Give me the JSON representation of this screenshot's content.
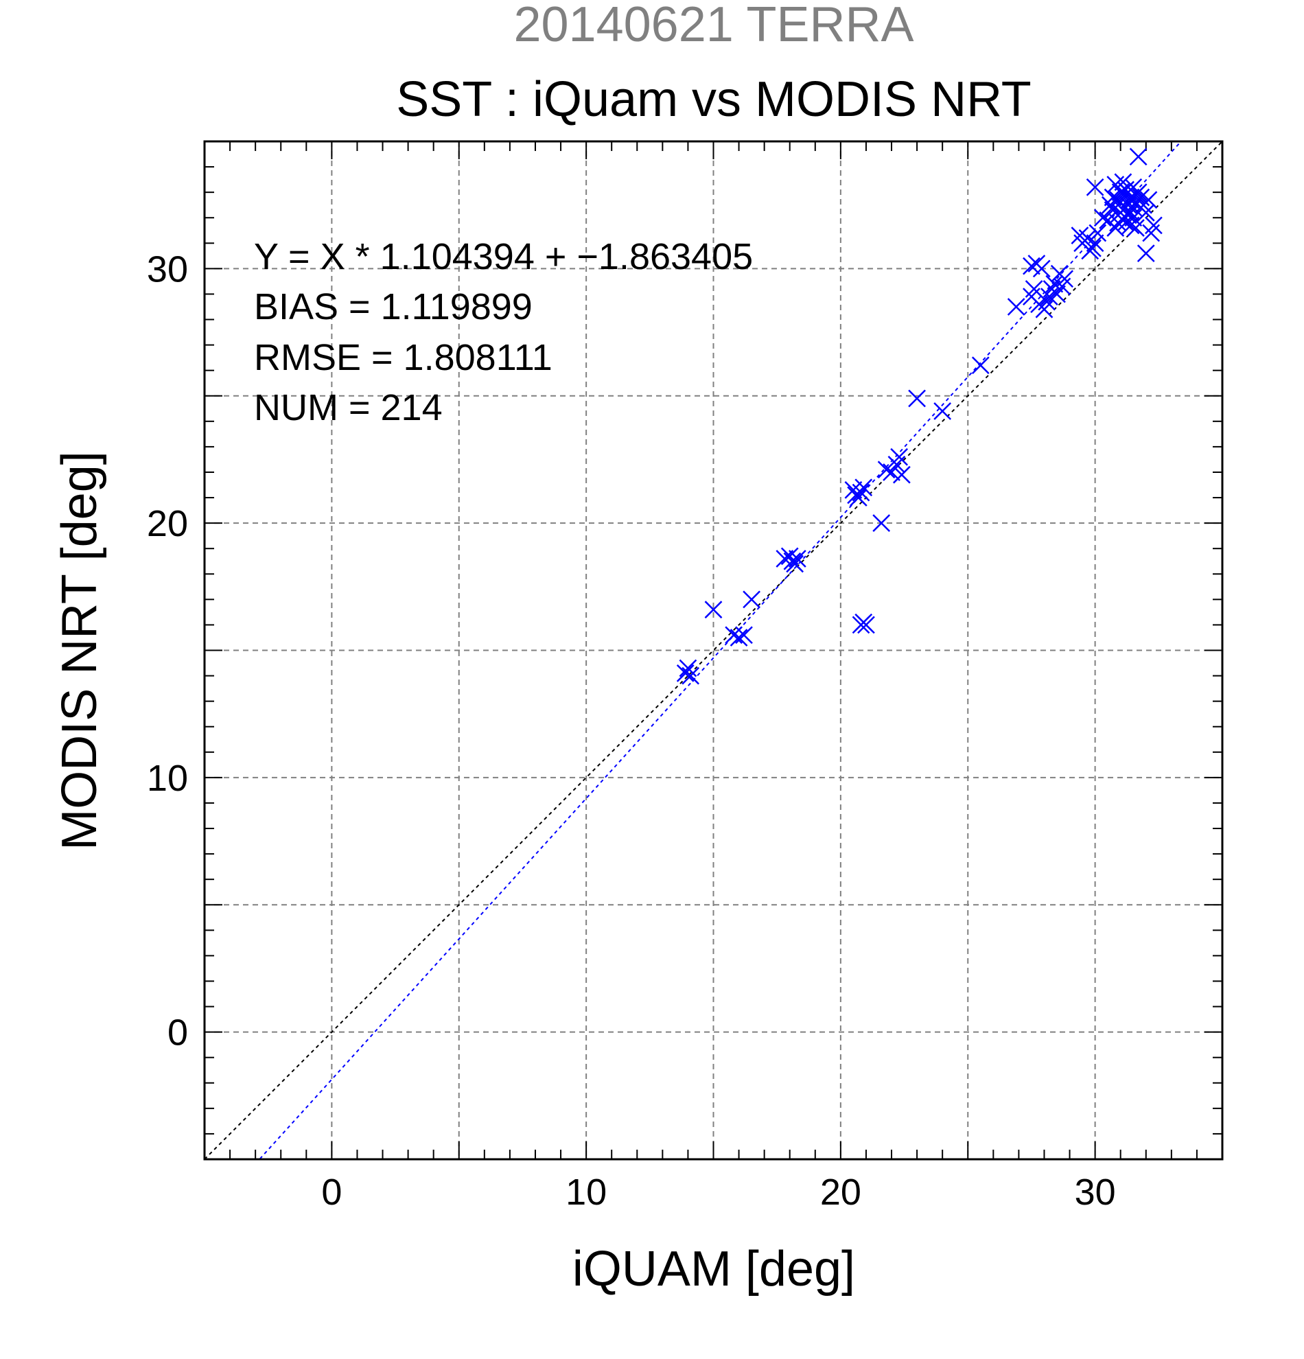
{
  "chart_data": {
    "type": "scatter",
    "title": "20140621 TERRA",
    "subtitle": "SST : iQuam vs MODIS NRT",
    "xlabel": "iQUAM [deg]",
    "ylabel": "MODIS NRT [deg]",
    "xlim": [
      -5,
      35
    ],
    "ylim": [
      -5,
      35
    ],
    "major_ticks": [
      0,
      10,
      20,
      30
    ],
    "tick_labels": [
      "0",
      "10",
      "20",
      "30"
    ],
    "grid_step": 5,
    "minor_step": 1,
    "grid": true,
    "colors": {
      "points": "#0000ff",
      "fit_line": "#0000ff",
      "identity_line": "#000000",
      "title": "#808080",
      "text": "#000000",
      "grid": "#808080"
    },
    "annotations": [
      "Y = X * 1.104394 + −1.863405",
      "BIAS = 1.119899",
      "RMSE = 1.808111",
      "NUM = 214"
    ],
    "fit": {
      "slope": 1.104394,
      "intercept": -1.863405
    },
    "series": [
      {
        "marker": "x",
        "points": [
          [
            13.9,
            14.1
          ],
          [
            14.0,
            14.3
          ],
          [
            14.1,
            14.0
          ],
          [
            15.0,
            16.6
          ],
          [
            15.8,
            15.6
          ],
          [
            16.0,
            15.5
          ],
          [
            16.2,
            15.6
          ],
          [
            16.5,
            17.0
          ],
          [
            17.8,
            18.6
          ],
          [
            18.0,
            18.7
          ],
          [
            18.1,
            18.5
          ],
          [
            18.2,
            18.4
          ],
          [
            18.3,
            18.6
          ],
          [
            20.5,
            21.3
          ],
          [
            20.6,
            21.1
          ],
          [
            20.7,
            21.0
          ],
          [
            20.8,
            21.2
          ],
          [
            20.9,
            21.4
          ],
          [
            20.8,
            16.0
          ],
          [
            20.9,
            16.1
          ],
          [
            21.0,
            16.0
          ],
          [
            21.6,
            20.0
          ],
          [
            21.8,
            22.1
          ],
          [
            22.0,
            22.0
          ],
          [
            22.2,
            22.3
          ],
          [
            22.4,
            21.9
          ],
          [
            22.3,
            22.6
          ],
          [
            23.0,
            24.9
          ],
          [
            24.0,
            24.4
          ],
          [
            25.5,
            26.2
          ],
          [
            26.9,
            28.5
          ],
          [
            27.5,
            30.1
          ],
          [
            27.7,
            30.2
          ],
          [
            27.9,
            30.0
          ],
          [
            27.6,
            29.2
          ],
          [
            27.8,
            28.6
          ],
          [
            28.0,
            28.4
          ],
          [
            28.2,
            28.9
          ],
          [
            28.4,
            29.4
          ],
          [
            28.6,
            29.8
          ],
          [
            28.8,
            29.6
          ],
          [
            28.5,
            29.0
          ],
          [
            28.1,
            28.7
          ],
          [
            27.5,
            28.9
          ],
          [
            28.3,
            29.2
          ],
          [
            28.7,
            29.3
          ],
          [
            29.4,
            31.3
          ],
          [
            29.5,
            31.0
          ],
          [
            29.7,
            31.2
          ],
          [
            29.9,
            30.8
          ],
          [
            30.0,
            31.0
          ],
          [
            30.1,
            31.4
          ],
          [
            29.8,
            30.7
          ],
          [
            30.0,
            33.2
          ],
          [
            30.3,
            32.0
          ],
          [
            30.5,
            31.9
          ],
          [
            30.6,
            32.5
          ],
          [
            30.7,
            32.8
          ],
          [
            30.8,
            33.3
          ],
          [
            30.9,
            32.1
          ],
          [
            31.0,
            32.6
          ],
          [
            31.1,
            33.4
          ],
          [
            31.2,
            32.9
          ],
          [
            31.3,
            33.0
          ],
          [
            31.4,
            32.7
          ],
          [
            31.5,
            33.2
          ],
          [
            30.9,
            31.8
          ],
          [
            31.0,
            32.2
          ],
          [
            31.1,
            31.9
          ],
          [
            31.2,
            32.4
          ],
          [
            31.3,
            32.1
          ],
          [
            31.4,
            31.7
          ],
          [
            31.5,
            32.0
          ],
          [
            31.6,
            32.6
          ],
          [
            31.7,
            34.4
          ],
          [
            31.8,
            32.8
          ],
          [
            31.9,
            32.5
          ],
          [
            32.0,
            32.2
          ],
          [
            32.1,
            32.7
          ],
          [
            32.2,
            31.4
          ],
          [
            32.3,
            31.7
          ],
          [
            32.0,
            30.6
          ],
          [
            30.8,
            31.6
          ],
          [
            30.7,
            32.3
          ],
          [
            31.0,
            33.0
          ],
          [
            31.2,
            33.1
          ],
          [
            31.4,
            32.8
          ],
          [
            31.6,
            32.9
          ],
          [
            31.1,
            32.3
          ],
          [
            31.3,
            32.5
          ],
          [
            31.5,
            32.4
          ],
          [
            31.7,
            33.0
          ],
          [
            30.9,
            32.7
          ],
          [
            31.2,
            31.8
          ],
          [
            31.4,
            32.2
          ],
          [
            31.6,
            31.6
          ]
        ]
      }
    ]
  }
}
